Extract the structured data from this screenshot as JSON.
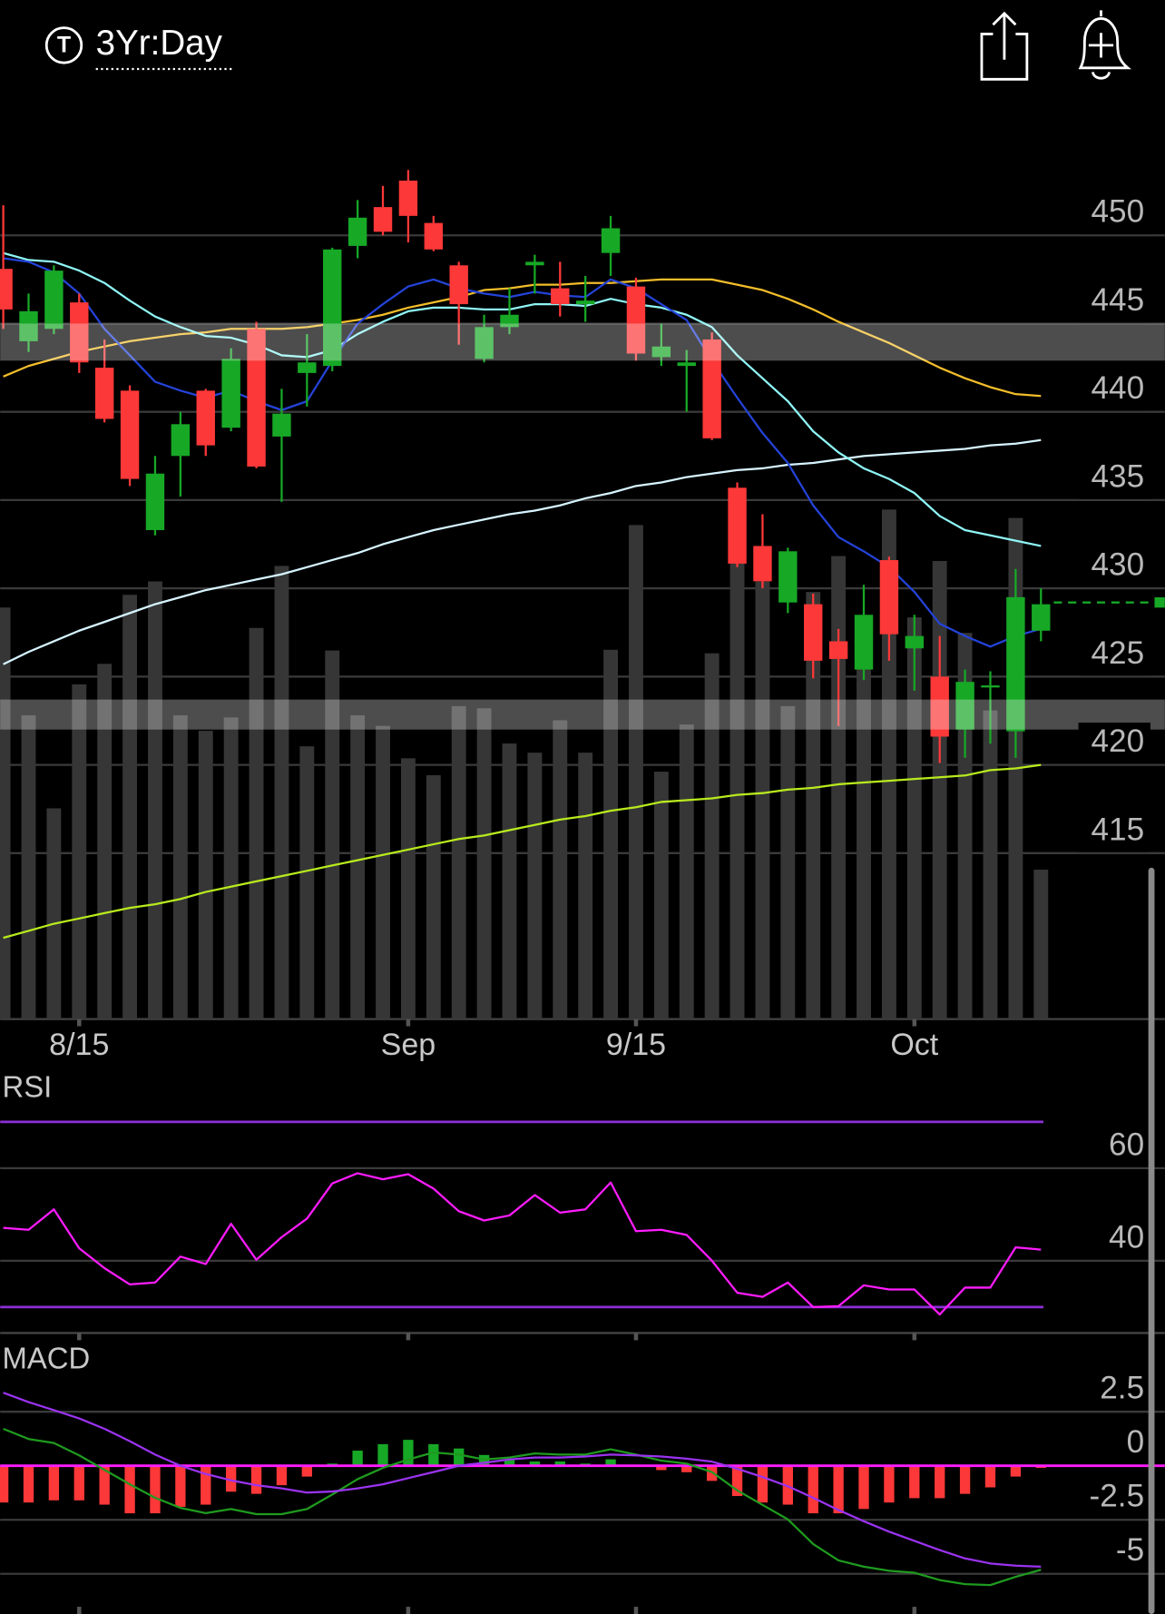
{
  "header": {
    "icon": "T",
    "timeframe": "3Yr:Day"
  },
  "chart_data": [
    {
      "type": "candlestick",
      "categories": [
        null,
        null,
        null,
        "8/15",
        null,
        null,
        null,
        null,
        null,
        null,
        null,
        null,
        null,
        null,
        null,
        null,
        "Sep",
        null,
        null,
        null,
        null,
        null,
        null,
        null,
        null,
        "9/15",
        null,
        null,
        null,
        null,
        null,
        null,
        null,
        null,
        null,
        null,
        "Oct",
        null,
        null,
        null,
        null,
        null
      ],
      "open": [
        448.1,
        444.0,
        444.7,
        446.2,
        442.5,
        441.2,
        433.3,
        437.5,
        441.2,
        439.1,
        444.7,
        438.6,
        442.2,
        442.6,
        449.4,
        451.6,
        453.1,
        450.7,
        448.3,
        443.0,
        444.8,
        448.3,
        447.0,
        446.1,
        449.0,
        447.1,
        443.1,
        442.6,
        444.1,
        435.7,
        432.4,
        429.2,
        429.1,
        427.0,
        425.4,
        431.6,
        426.6,
        425.0,
        422.0,
        424.4,
        421.9,
        427.6
      ],
      "high": [
        451.7,
        446.7,
        448.3,
        446.7,
        444.1,
        441.5,
        437.5,
        440.0,
        441.3,
        443.6,
        445.1,
        441.3,
        444.4,
        449.3,
        452.0,
        452.8,
        453.7,
        451.1,
        448.5,
        445.5,
        447.0,
        448.9,
        448.5,
        447.7,
        451.1,
        447.6,
        445.0,
        443.5,
        444.5,
        436.0,
        434.2,
        432.3,
        429.7,
        427.7,
        430.2,
        431.8,
        428.5,
        427.3,
        425.4,
        425.3,
        431.1,
        430.0
      ],
      "low": [
        444.7,
        443.4,
        444.4,
        442.2,
        439.4,
        435.8,
        433.0,
        435.2,
        437.5,
        438.9,
        436.8,
        434.9,
        440.3,
        442.3,
        448.7,
        450.0,
        449.6,
        449.1,
        443.8,
        442.8,
        444.4,
        446.7,
        445.4,
        445.1,
        447.7,
        442.9,
        442.6,
        440.0,
        438.4,
        431.2,
        430.0,
        428.6,
        424.9,
        422.2,
        424.8,
        425.9,
        424.2,
        420.1,
        420.4,
        421.2,
        420.4,
        427.0
      ],
      "close": [
        445.8,
        445.7,
        448.0,
        442.8,
        439.6,
        436.2,
        436.5,
        439.3,
        438.1,
        443.0,
        436.9,
        439.9,
        442.8,
        449.2,
        451.0,
        450.2,
        451.1,
        449.2,
        446.1,
        444.8,
        445.5,
        448.5,
        446.1,
        446.3,
        450.4,
        443.3,
        443.7,
        442.8,
        438.5,
        431.4,
        430.4,
        432.1,
        425.9,
        426.0,
        428.5,
        427.4,
        427.3,
        421.6,
        424.7,
        424.5,
        429.5,
        429.1
      ],
      "color_up": "#17a826",
      "color_down": "#fc3838",
      "volume": [
        58.4,
        43.1,
        29.9,
        47.5,
        50.4,
        60.2,
        62.1,
        43.1,
        40.9,
        42.8,
        55.5,
        64.3,
        38.7,
        52.3,
        43.1,
        41.6,
        37.0,
        34.6,
        44.4,
        44.1,
        39.1,
        37.8,
        42.4,
        37.8,
        52.4,
        70.1,
        35.1,
        41.8,
        51.9,
        65.0,
        62.1,
        44.4,
        60.6,
        65.7,
        55.5,
        72.3,
        57.0,
        65.0,
        54.8,
        43.8,
        71.1,
        21.2
      ],
      "volume_lim": [
        0,
        130
      ],
      "volume_color": "#363636",
      "lines": [
        {
          "color": "#f2bd2a",
          "values": [
            442.0,
            442.6,
            443.0,
            443.4,
            443.7,
            444.0,
            444.2,
            444.4,
            444.5,
            444.7,
            444.7,
            444.7,
            444.8,
            445.0,
            445.2,
            445.5,
            445.9,
            446.2,
            446.5,
            446.9,
            447.0,
            447.2,
            447.2,
            447.3,
            447.3,
            447.4,
            447.5,
            447.5,
            447.5,
            447.2,
            446.9,
            446.4,
            445.8,
            445.1,
            444.5,
            443.9,
            443.2,
            442.5,
            441.9,
            441.4,
            441.0,
            440.9
          ]
        },
        {
          "color": "#d6f4ff",
          "values": [
            425.7,
            426.4,
            427.0,
            427.6,
            428.1,
            428.6,
            429.1,
            429.5,
            429.9,
            430.2,
            430.5,
            430.8,
            431.2,
            431.6,
            432.0,
            432.5,
            432.9,
            433.3,
            433.6,
            433.9,
            434.2,
            434.4,
            434.7,
            435.1,
            435.4,
            435.8,
            436.0,
            436.3,
            436.5,
            436.7,
            436.8,
            437.0,
            437.1,
            437.3,
            437.5,
            437.6,
            437.7,
            437.8,
            437.9,
            438.1,
            438.2,
            438.4
          ]
        },
        {
          "color": "#b8ea1e",
          "values": [
            410.2,
            410.6,
            411.0,
            411.3,
            411.6,
            411.9,
            412.1,
            412.4,
            412.8,
            413.1,
            413.4,
            413.7,
            414.0,
            414.3,
            414.6,
            414.9,
            415.2,
            415.5,
            415.8,
            416.0,
            416.3,
            416.6,
            416.9,
            417.1,
            417.4,
            417.6,
            417.9,
            418.0,
            418.1,
            418.3,
            418.4,
            418.6,
            418.7,
            418.9,
            419.0,
            419.1,
            419.2,
            419.3,
            419.4,
            419.7,
            419.8,
            420.0
          ]
        },
        {
          "color": "#8ff5f5",
          "values": [
            449.0,
            448.6,
            448.5,
            448.0,
            447.3,
            446.3,
            445.4,
            444.8,
            444.3,
            444.2,
            443.8,
            443.2,
            443.1,
            443.5,
            444.4,
            445.1,
            445.7,
            445.9,
            445.9,
            445.8,
            445.8,
            446.1,
            446.1,
            446.0,
            446.4,
            446.1,
            445.9,
            445.5,
            444.8,
            443.2,
            441.9,
            440.6,
            438.9,
            437.7,
            436.8,
            436.2,
            435.4,
            434.1,
            433.3,
            433.0,
            432.7,
            432.4
          ]
        },
        {
          "color": "#2443d8",
          "values": [
            448.7,
            448.5,
            447.9,
            446.7,
            444.7,
            443.2,
            441.7,
            441.2,
            440.8,
            441.2,
            440.6,
            440.1,
            440.6,
            442.9,
            445.0,
            446.1,
            447.1,
            447.5,
            447.0,
            446.7,
            446.5,
            446.8,
            446.6,
            446.5,
            447.5,
            447.0,
            446.1,
            445.2,
            442.9,
            440.8,
            438.8,
            437.1,
            434.7,
            432.9,
            432.1,
            431.2,
            429.8,
            428.0,
            427.3,
            426.7,
            427.3,
            427.7
          ]
        }
      ],
      "zones": [
        [
          442.9,
          445.0
        ],
        [
          422.0,
          423.7
        ]
      ],
      "last_price": 429.2,
      "ylim": [
        405.6,
        457.5
      ],
      "yticks": [
        450,
        445,
        440,
        435,
        430,
        425,
        420,
        415
      ],
      "grid": true
    },
    {
      "type": "line",
      "title": "RSI",
      "values": [
        47.1,
        46.7,
        51.1,
        42.7,
        38.4,
        34.9,
        35.3,
        40.9,
        39.3,
        48.0,
        40.2,
        45.1,
        49.1,
        56.7,
        58.9,
        57.6,
        58.7,
        55.6,
        50.7,
        48.7,
        49.8,
        54.2,
        50.4,
        51.1,
        56.9,
        46.4,
        46.7,
        45.6,
        40.0,
        33.1,
        32.2,
        35.3,
        30.0,
        30.2,
        34.7,
        33.8,
        33.8,
        28.4,
        34.2,
        34.2,
        42.9,
        42.4
      ],
      "color": "#ff1cff",
      "bands": [
        70,
        30
      ],
      "band_color": "#8c2fd6",
      "ylim": [
        24.4,
        81.1
      ],
      "yticks": [
        60,
        40
      ],
      "grid": true
    },
    {
      "type": "macd",
      "title": "MACD",
      "histogram": [
        -1.7,
        -1.7,
        -1.6,
        -1.6,
        -1.8,
        -2.2,
        -2.2,
        -1.9,
        -1.8,
        -1.2,
        -1.3,
        -0.9,
        -0.5,
        0.1,
        0.7,
        1.0,
        1.2,
        1.0,
        0.8,
        0.5,
        0.3,
        0.2,
        0.2,
        0.1,
        0.3,
        0.05,
        -0.2,
        -0.3,
        -0.7,
        -1.4,
        -1.7,
        -1.8,
        -2.2,
        -2.2,
        -2.0,
        -1.7,
        -1.5,
        -1.5,
        -1.3,
        -1.0,
        -0.5,
        -0.1
      ],
      "color_up": "#17a826",
      "color_down": "#fc3838",
      "series": [
        {
          "color": "#1f9a1f",
          "values": [
            1.71,
            1.24,
            1.05,
            0.48,
            -0.19,
            -0.86,
            -1.48,
            -1.95,
            -2.19,
            -2.0,
            -2.24,
            -2.24,
            -2.0,
            -1.33,
            -0.62,
            -0.1,
            0.29,
            0.62,
            0.52,
            0.29,
            0.38,
            0.57,
            0.52,
            0.52,
            0.76,
            0.52,
            0.24,
            0.1,
            -0.29,
            -1.14,
            -1.81,
            -2.48,
            -3.62,
            -4.38,
            -4.67,
            -4.86,
            -4.95,
            -5.29,
            -5.48,
            -5.52,
            -5.14,
            -4.81
          ]
        },
        {
          "color": "#9a33f0",
          "values": [
            3.38,
            2.95,
            2.57,
            2.19,
            1.71,
            1.14,
            0.52,
            0,
            -0.38,
            -0.67,
            -0.9,
            -1.05,
            -1.24,
            -1.19,
            -1.05,
            -0.86,
            -0.57,
            -0.29,
            0,
            0.14,
            0.29,
            0.38,
            0.38,
            0.43,
            0.52,
            0.48,
            0.43,
            0.33,
            0.19,
            -0.14,
            -0.52,
            -0.95,
            -1.48,
            -2.05,
            -2.57,
            -3.05,
            -3.48,
            -3.9,
            -4.29,
            -4.52,
            -4.62,
            -4.67
          ]
        }
      ],
      "zero_color": "#ff1cff",
      "ylim": [
        -6.86,
        5.43
      ],
      "yticks": [
        2.5,
        0,
        -2.5,
        -5
      ],
      "grid": true
    }
  ]
}
